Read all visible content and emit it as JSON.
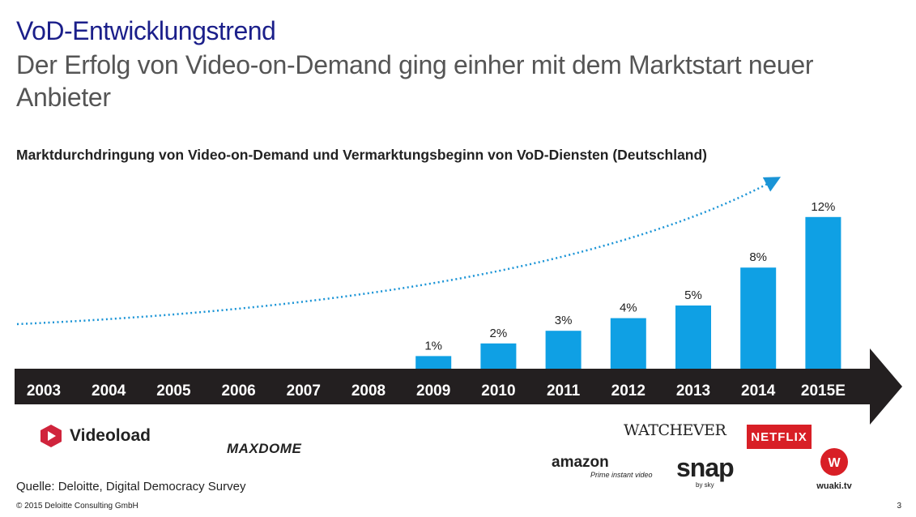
{
  "header": {
    "title": "VoD-Entwicklungstrend",
    "subtitle": "Der Erfolg von Video-on-Demand ging einher mit dem Marktstart neuer Anbieter"
  },
  "chart_data": {
    "type": "bar",
    "title": "Marktdurchdringung von Video-on-Demand und Vermarktungsbeginn von VoD-Diensten (Deutschland)",
    "categories": [
      "2003",
      "2004",
      "2005",
      "2006",
      "2007",
      "2008",
      "2009",
      "2010",
      "2011",
      "2012",
      "2013",
      "2014",
      "2015E"
    ],
    "values": [
      null,
      null,
      null,
      null,
      null,
      null,
      1,
      2,
      3,
      4,
      5,
      8,
      12
    ],
    "labels": [
      "",
      "",
      "",
      "",
      "",
      "",
      "1%",
      "2%",
      "3%",
      "4%",
      "5%",
      "8%",
      "12%"
    ],
    "ylim": [
      0,
      12
    ],
    "unit": "%",
    "trend_arrow": true
  },
  "colors": {
    "title": "#1b1f8a",
    "bar": "#0fa0e4",
    "timeline": "#231f20",
    "trend": "#1a94d6",
    "netflix": "#d81f26",
    "wuaki": "#d81f26"
  },
  "logos": {
    "videoload": "Videoload",
    "maxdome": "MAXDOME",
    "watchever": "WATCHEVER",
    "netflix": "NETFLIX",
    "amazon_main": "amazon",
    "amazon_sub": "Prime instant video",
    "snap_main": "snap",
    "snap_sub": "by sky",
    "wuaki": "wuaki.tv"
  },
  "footer": {
    "source": "Quelle: Deloitte, Digital Democracy Survey",
    "copyright": "© 2015 Deloitte Consulting GmbH",
    "page": "3"
  }
}
